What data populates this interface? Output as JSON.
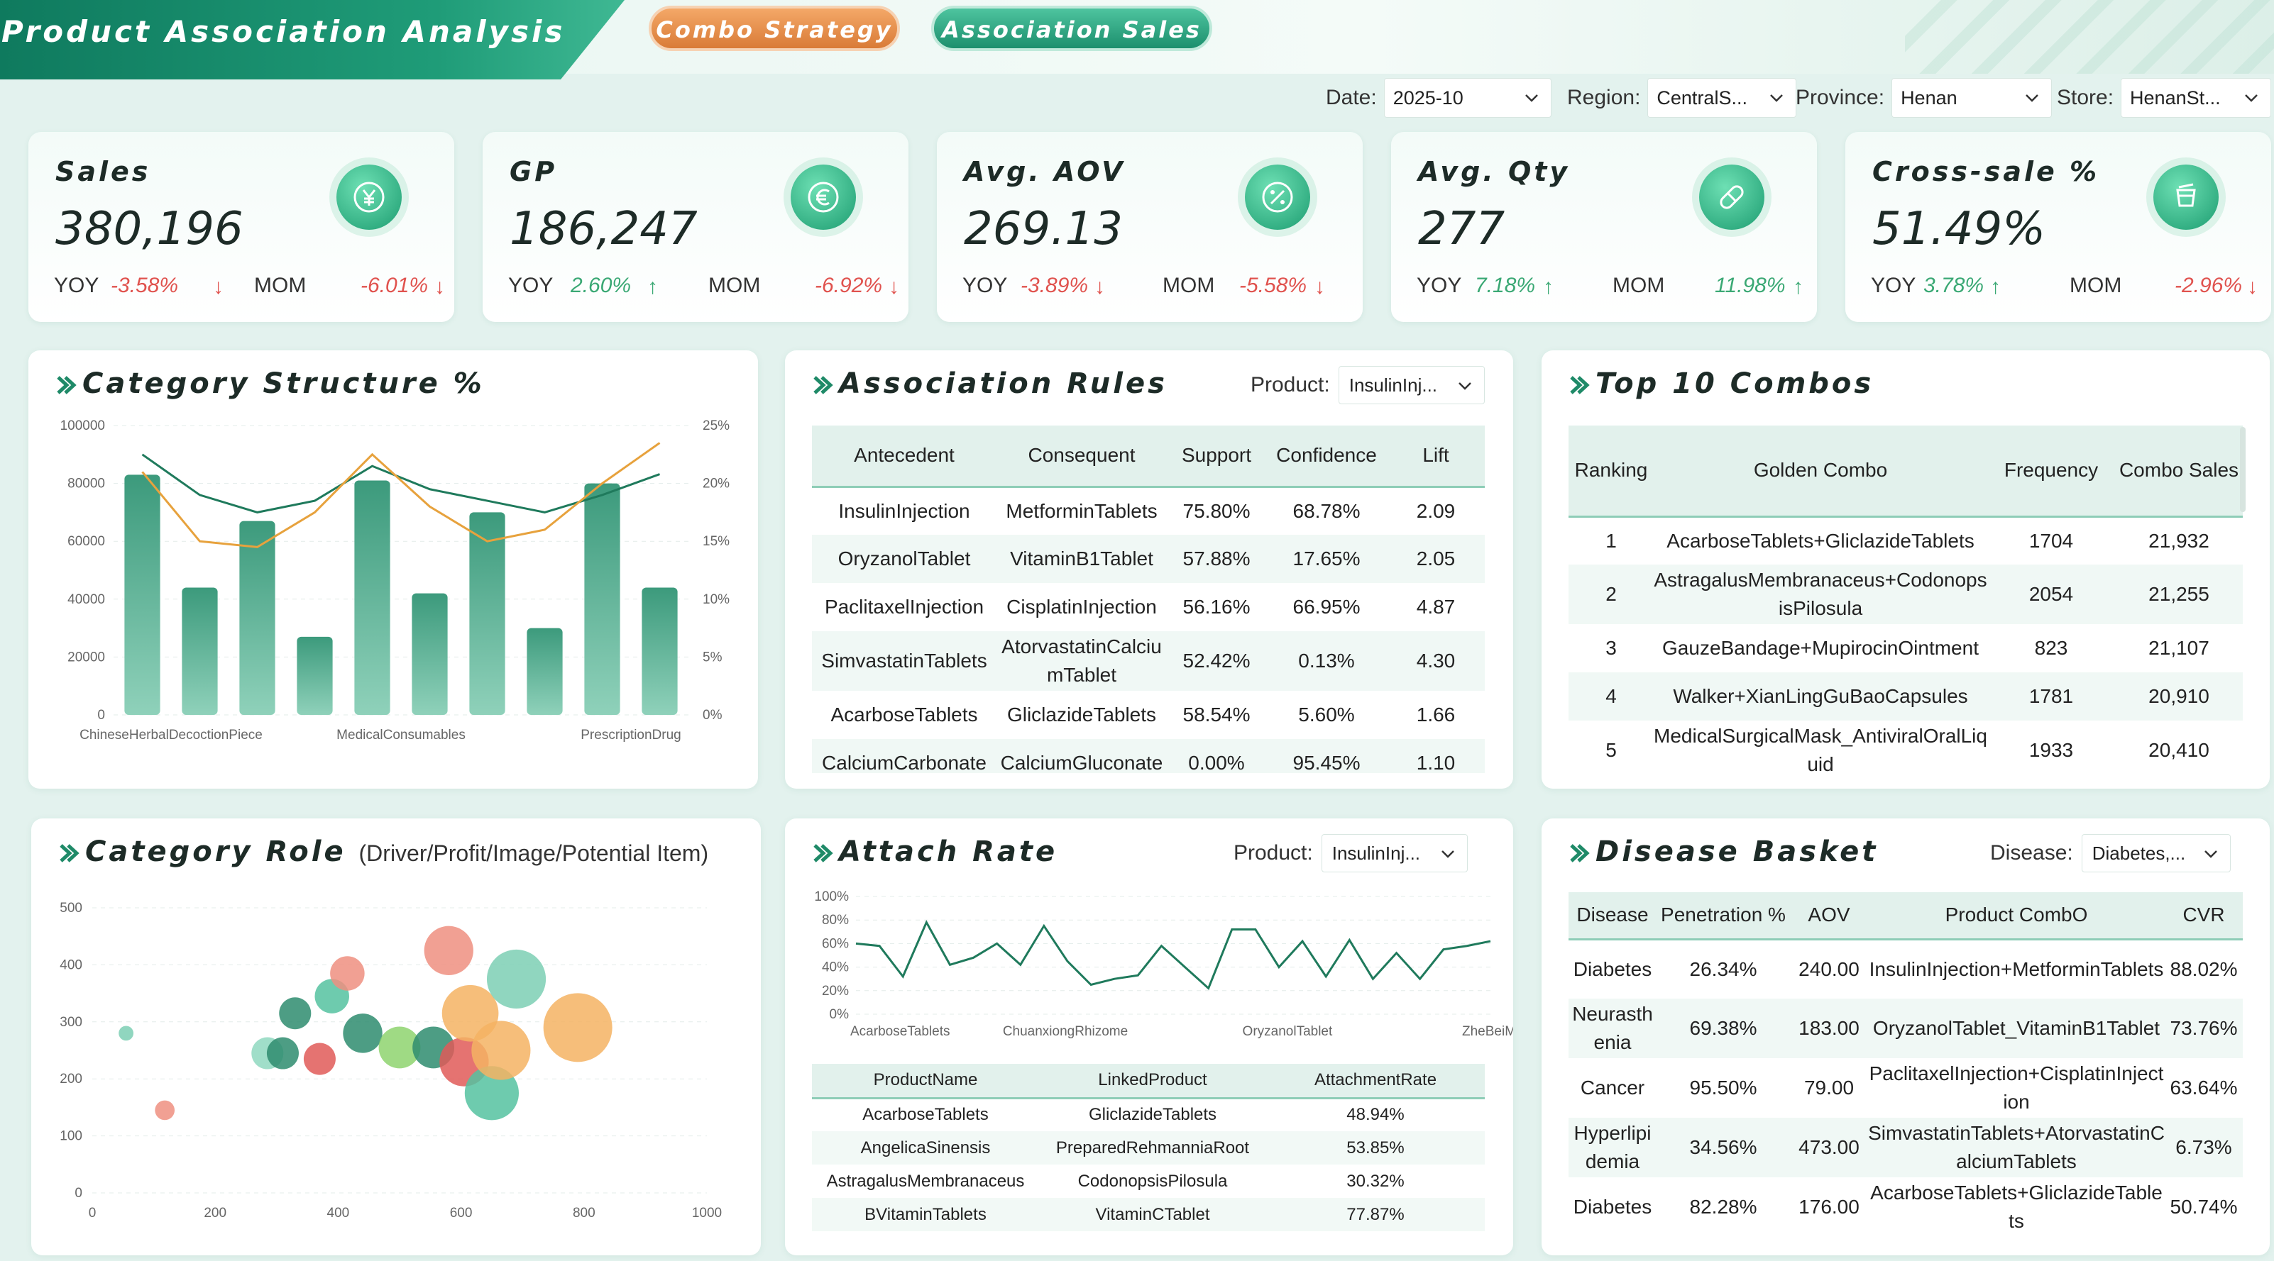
{
  "header": {
    "title": "Product Association Analysis",
    "tabs": [
      "Combo Strategy",
      "Association Sales"
    ]
  },
  "filters": [
    {
      "label": "Date:",
      "value": "2025-10"
    },
    {
      "label": "Region:",
      "value": "CentralS..."
    },
    {
      "label": "Province:",
      "value": "Henan"
    },
    {
      "label": "Store:",
      "value": "HenanSt..."
    }
  ],
  "kpis": [
    {
      "name": "Sales",
      "value": "380,196",
      "yoy_label": "YOY",
      "yoy": "-3.58%",
      "yoy_dir": "down",
      "mom_label": "MOM",
      "mom": "-6.01%",
      "mom_dir": "down",
      "icon": "yen-coin-icon"
    },
    {
      "name": "GP",
      "value": "186,247",
      "yoy_label": "YOY",
      "yoy": "2.60%",
      "yoy_dir": "up",
      "mom_label": "MOM",
      "mom": "-6.92%",
      "mom_dir": "down",
      "icon": "euro-coin-icon"
    },
    {
      "name": "Avg. AOV",
      "value": "269.13",
      "yoy_label": "YOY",
      "yoy": "-3.89%",
      "yoy_dir": "down",
      "mom_label": "MOM",
      "mom": "-5.58%",
      "mom_dir": "down",
      "icon": "percent-icon"
    },
    {
      "name": "Avg. Qty",
      "value": "277",
      "yoy_label": "YOY",
      "yoy": "7.18%",
      "yoy_dir": "up",
      "mom_label": "MOM",
      "mom": "11.98%",
      "mom_dir": "up",
      "icon": "pill-icon"
    },
    {
      "name": "Cross-sale %",
      "value": "51.49%",
      "yoy_label": "YOY",
      "yoy": "3.78%",
      "yoy_dir": "up",
      "mom_label": "MOM",
      "mom": "-2.96%",
      "mom_dir": "down",
      "icon": "cup-icon"
    }
  ],
  "category_structure": {
    "title": "Category Structure %",
    "chart_data": {
      "type": "bar",
      "categories": [
        "ChineseHerbalDecoctionPiece",
        "",
        "",
        "",
        "MedicalConsumables",
        "",
        "",
        "",
        "PrescriptionDrug",
        ""
      ],
      "x_tick_labels": [
        "ChineseHerbalDecoctionPiece",
        "MedicalConsumables",
        "PrescriptionDrug"
      ],
      "y_ticks": [
        "0",
        "20000",
        "40000",
        "60000",
        "80000",
        "100000"
      ],
      "y2_ticks": [
        "0%",
        "5%",
        "10%",
        "15%",
        "20%",
        "25%"
      ],
      "ylim": [
        0,
        100000
      ],
      "y2lim": [
        0,
        25
      ],
      "bars": [
        83000,
        44000,
        67000,
        27000,
        81000,
        42000,
        70000,
        30000,
        80000,
        44000
      ],
      "line_green": [
        22.5,
        19.0,
        17.5,
        18.5,
        21.5,
        19.5,
        18.5,
        17.5,
        19.0,
        20.8
      ],
      "line_orange": [
        21.0,
        15.0,
        14.5,
        17.5,
        22.5,
        18.0,
        15.0,
        16.0,
        20.0,
        23.5
      ]
    }
  },
  "association_rules": {
    "title": "Association Rules",
    "product_label": "Product:",
    "product_value": "InsulinInj...",
    "columns": [
      "Antecedent",
      "Consequent",
      "Support",
      "Confidence",
      "Lift"
    ],
    "rows": [
      [
        "InsulinInjection",
        "MetforminTablets",
        "75.80%",
        "68.78%",
        "2.09"
      ],
      [
        "OryzanolTablet",
        "VitaminB1Tablet",
        "57.88%",
        "17.65%",
        "2.05"
      ],
      [
        "PaclitaxelInjection",
        "CisplatinInjection",
        "56.16%",
        "66.95%",
        "4.87"
      ],
      [
        "SimvastatinTablets",
        "AtorvastatinCalciumTablet",
        "52.42%",
        "0.13%",
        "4.30"
      ],
      [
        "AcarboseTablets",
        "GliclazideTablets",
        "58.54%",
        "5.60%",
        "1.66"
      ],
      [
        "CalciumCarbonate",
        "CalciumGluconate",
        "0.00%",
        "95.45%",
        "1.10"
      ]
    ]
  },
  "top_combos": {
    "title": "Top 10 Combos",
    "columns": [
      "Ranking",
      "Golden Combo",
      "Frequency",
      "Combo Sales"
    ],
    "rows": [
      [
        "1",
        "AcarboseTablets+GliclazideTablets",
        "1704",
        "21,932"
      ],
      [
        "2",
        "AstragalusMembranaceus+CodonopsisPilosula",
        "2054",
        "21,255"
      ],
      [
        "3",
        "GauzeBandage+MupirocinOintment",
        "823",
        "21,107"
      ],
      [
        "4",
        "Walker+XianLingGuBaoCapsules",
        "1781",
        "20,910"
      ],
      [
        "5",
        "MedicalSurgicalMask_AntiviralOralLiquid",
        "1933",
        "20,410"
      ]
    ]
  },
  "category_role": {
    "title": "Category Role",
    "subtitle": "(Driver/Profit/Image/Potential Item)",
    "chart_data": {
      "type": "scatter",
      "xlim": [
        0,
        1000
      ],
      "ylim": [
        0,
        500
      ],
      "x_ticks": [
        "0",
        "200",
        "400",
        "600",
        "800",
        "1000"
      ],
      "y_ticks": [
        "0",
        "100",
        "200",
        "300",
        "400",
        "500"
      ],
      "points": [
        {
          "x": 55,
          "y": 280,
          "r": 6,
          "color": "#7ccfb4"
        },
        {
          "x": 118,
          "y": 145,
          "r": 8,
          "color": "#ef8f80"
        },
        {
          "x": 285,
          "y": 245,
          "r": 13,
          "color": "#8fd8c0"
        },
        {
          "x": 310,
          "y": 245,
          "r": 13,
          "color": "#2e8c6e"
        },
        {
          "x": 330,
          "y": 315,
          "r": 13,
          "color": "#2e8c6e"
        },
        {
          "x": 370,
          "y": 235,
          "r": 13,
          "color": "#e05a58"
        },
        {
          "x": 390,
          "y": 345,
          "r": 14,
          "color": "#55c2a0"
        },
        {
          "x": 415,
          "y": 385,
          "r": 14,
          "color": "#ef8f80"
        },
        {
          "x": 440,
          "y": 280,
          "r": 16,
          "color": "#2e8c6e"
        },
        {
          "x": 500,
          "y": 255,
          "r": 17,
          "color": "#8ed46e"
        },
        {
          "x": 555,
          "y": 255,
          "r": 17,
          "color": "#2e8c6e"
        },
        {
          "x": 580,
          "y": 425,
          "r": 20,
          "color": "#ef8f80"
        },
        {
          "x": 605,
          "y": 230,
          "r": 20,
          "color": "#e05a58"
        },
        {
          "x": 615,
          "y": 315,
          "r": 23,
          "color": "#f4b363"
        },
        {
          "x": 650,
          "y": 175,
          "r": 22,
          "color": "#55c2a0"
        },
        {
          "x": 665,
          "y": 250,
          "r": 24,
          "color": "#f4b363"
        },
        {
          "x": 690,
          "y": 375,
          "r": 24,
          "color": "#7ccfb4"
        },
        {
          "x": 790,
          "y": 290,
          "r": 28,
          "color": "#f4b363"
        }
      ]
    }
  },
  "attach_rate": {
    "title": "Attach Rate",
    "product_label": "Product:",
    "product_value": "InsulinInj...",
    "chart_data": {
      "type": "line",
      "ylim": [
        0,
        100
      ],
      "y_ticks": [
        "0%",
        "20%",
        "40%",
        "60%",
        "80%",
        "100%"
      ],
      "x_tick_labels": [
        "AcarboseTablets",
        "ChuanxiongRhizome",
        "OryzanolTablet",
        "ZheBeiMu"
      ],
      "values": [
        60,
        58,
        32,
        78,
        42,
        48,
        60,
        42,
        75,
        45,
        25,
        30,
        33,
        58,
        40,
        22,
        72,
        72,
        40,
        62,
        32,
        63,
        30,
        52,
        30,
        55,
        58,
        62
      ]
    },
    "columns": [
      "ProductName",
      "LinkedProduct",
      "AttachmentRate"
    ],
    "rows": [
      [
        "AcarboseTablets",
        "GliclazideTablets",
        "48.94%"
      ],
      [
        "AngelicaSinensis",
        "PreparedRehmanniaRoot",
        "53.85%"
      ],
      [
        "AstragalusMembranaceus",
        "CodonopsisPilosula",
        "30.32%"
      ],
      [
        "BVitaminTablets",
        "VitaminCTablet",
        "77.87%"
      ]
    ]
  },
  "disease_basket": {
    "title": "Disease Basket",
    "disease_label": "Disease:",
    "disease_value": "Diabetes,...",
    "columns": [
      "Disease",
      "Penetration %",
      "AOV",
      "Product CombO",
      "CVR"
    ],
    "rows": [
      [
        "Diabetes",
        "26.34%",
        "240.00",
        "InsulinInjection+MetforminTablets",
        "88.02%"
      ],
      [
        "Neurasthenia",
        "69.38%",
        "183.00",
        "OryzanolTablet_VitaminB1Tablet",
        "73.76%"
      ],
      [
        "Cancer",
        "95.50%",
        "79.00",
        "PaclitaxelInjection+CisplatinInjection",
        "63.64%"
      ],
      [
        "Hyperlipidemia",
        "34.56%",
        "473.00",
        "SimvastatinTablets+AtorvastatinCalciumTablets",
        "6.73%"
      ],
      [
        "Diabetes",
        "82.28%",
        "176.00",
        "AcarboseTablets+GliclazideTablets",
        "50.74%"
      ]
    ]
  }
}
